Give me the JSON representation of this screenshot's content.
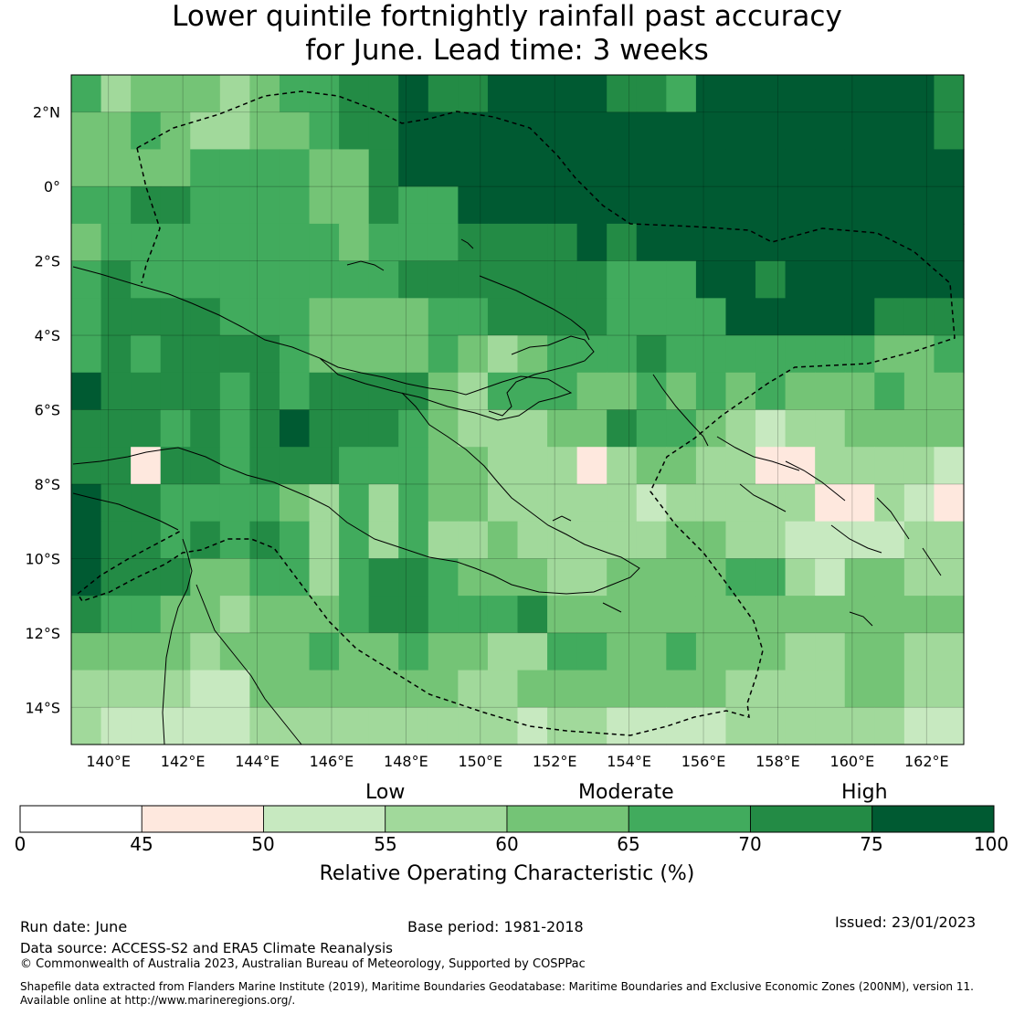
{
  "title_line1": "Lower quintile fortnightly rainfall past accuracy",
  "title_line2": "for June. Lead time: 3 weeks",
  "map": {
    "lon_range": [
      139,
      163
    ],
    "lat_range": [
      -15,
      3
    ],
    "lon_ticks": [
      "140°E",
      "142°E",
      "144°E",
      "146°E",
      "148°E",
      "150°E",
      "152°E",
      "154°E",
      "156°E",
      "158°E",
      "160°E",
      "162°E"
    ],
    "lat_ticks": [
      "2°N",
      "0°",
      "2°S",
      "4°S",
      "6°S",
      "8°S",
      "10°S",
      "12°S",
      "14°S"
    ],
    "grid_lines": true,
    "boundary_style": "dashed EEZ outline"
  },
  "colorbar": {
    "level_labels": [
      "Low",
      "Moderate",
      "High"
    ],
    "ticks": [
      "0",
      "45",
      "50",
      "55",
      "60",
      "65",
      "70",
      "75",
      "100"
    ],
    "colors": [
      "#ffffff",
      "#fee8de",
      "#c7e9c0",
      "#a1d99b",
      "#74c476",
      "#41ab5d",
      "#238b45",
      "#005a32"
    ],
    "label": "Relative Operating Characteristic (%)"
  },
  "footer": {
    "run_date": "Run date: June",
    "base_period": "Base period: 1981-2018",
    "issued": "Issued: 23/01/2023",
    "data_source": "Data source: ACCESS-S2 and ERA5 Climate Reanalysis",
    "copyright": "© Commonwealth of Australia 2023, Australian Bureau of Meteorology, Supported by COSPPac",
    "shapefile_line1": "Shapefile data extracted from Flanders Marine Institute (2019), Maritime Boundaries Geodatabase: Maritime Boundaries and Exclusive Economic Zones (200NM), version 11.",
    "shapefile_line2": "Available online at http://www.marineregions.org/."
  }
}
